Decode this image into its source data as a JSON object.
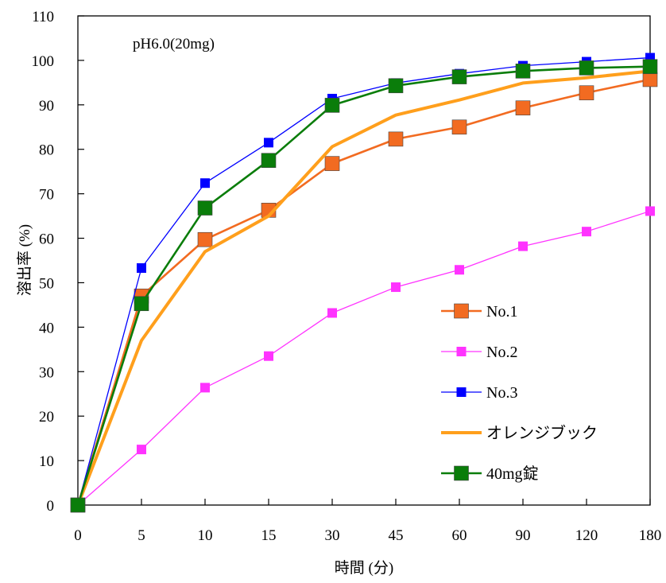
{
  "chart_data": {
    "type": "line",
    "annotation": "pH6.0(20mg)",
    "xlabel": "時間 (分)",
    "ylabel": "溶出率 (%)",
    "categories": [
      "0",
      "5",
      "10",
      "15",
      "30",
      "45",
      "60",
      "90",
      "120",
      "180"
    ],
    "ylim": [
      0,
      110
    ],
    "yticks": [
      0,
      10,
      20,
      30,
      40,
      50,
      60,
      70,
      80,
      90,
      100,
      110
    ],
    "grid": false,
    "legend_position": "bottom-right",
    "series": [
      {
        "name": "No.1",
        "color": "#f26b21",
        "marker": "square-large",
        "values": [
          0,
          47,
          59.7,
          66.3,
          76.8,
          82.3,
          85,
          89.3,
          92.7,
          95.7
        ]
      },
      {
        "name": "No.2",
        "color": "#ff33ff",
        "marker": "square-small",
        "values": [
          0,
          12.5,
          26.4,
          33.5,
          43.2,
          49,
          52.9,
          58.2,
          61.5,
          66.1
        ]
      },
      {
        "name": "No.3",
        "color": "#0000ff",
        "marker": "square-small",
        "values": [
          0,
          53.3,
          72.4,
          81.5,
          91.4,
          94.9,
          97,
          98.8,
          99.7,
          100.6
        ]
      },
      {
        "name": "オレンジブック",
        "color": "#ff9f1c",
        "marker": "none",
        "values": [
          0,
          37,
          57,
          65,
          80.6,
          87.7,
          91.1,
          94.9,
          96.1,
          97.6
        ]
      },
      {
        "name": "40mg錠",
        "color": "#0a7d0a",
        "marker": "square-large",
        "values": [
          0,
          45.3,
          66.8,
          77.5,
          89.9,
          94.3,
          96.3,
          97.6,
          98.3,
          98.6
        ]
      }
    ]
  }
}
